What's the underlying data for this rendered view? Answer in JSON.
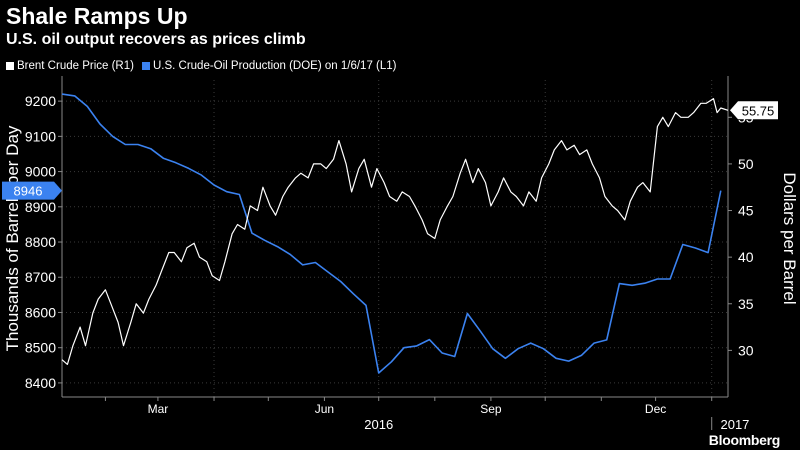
{
  "header": {
    "title": "Shale Ramps Up",
    "subtitle": "U.S. oil output recovers as prices climb"
  },
  "legend": [
    {
      "name": "Brent Crude Price (R1)",
      "color": "#ffffff"
    },
    {
      "name": "U.S. Crude-Oil Production (DOE) on 1/6/17 (L1)",
      "color": "#3b82f0"
    }
  ],
  "brand": "Bloomberg",
  "chart_data": {
    "type": "line",
    "title": "Shale Ramps Up",
    "subtitle": "U.S. oil output recovers as prices climb",
    "ylabel_left": "Thousands of Barrels per Day",
    "ylabel_right": "Dollars per Barrel",
    "left_axis": {
      "range": [
        8360,
        9260
      ],
      "ticks": [
        8400,
        8500,
        8600,
        8700,
        8800,
        8900,
        9000,
        9100,
        9200
      ]
    },
    "right_axis": {
      "range": [
        25,
        59
      ],
      "ticks": [
        30,
        35,
        40,
        45,
        50,
        55
      ]
    },
    "x_axis": {
      "range": [
        "2016-01-08",
        "2017-01-10"
      ],
      "month_labels": [
        {
          "date": "2016-03-01",
          "label": "Mar"
        },
        {
          "date": "2016-06-01",
          "label": "Jun"
        },
        {
          "date": "2016-09-01",
          "label": "Sep"
        },
        {
          "date": "2016-12-01",
          "label": "Dec"
        }
      ],
      "year_labels": [
        {
          "date": "2016-07-01",
          "label": "2016"
        },
        {
          "date": "2017-01-05",
          "label": "2017"
        }
      ],
      "gridlines": [
        "2016-04-01",
        "2016-07-01",
        "2016-10-01",
        "2017-01-01"
      ]
    },
    "grid": true,
    "legend_position": "top-left",
    "last_value_labels": {
      "production": "8946",
      "brent": "55.75"
    },
    "series": [
      {
        "name": "U.S. Crude-Oil Production (DOE) on 1/6/17 (L1)",
        "axis": "left",
        "color": "#3b82f0",
        "points": [
          [
            "2016-01-08",
            9220
          ],
          [
            "2016-01-15",
            9215
          ],
          [
            "2016-01-22",
            9185
          ],
          [
            "2016-01-29",
            9135
          ],
          [
            "2016-02-05",
            9100
          ],
          [
            "2016-02-12",
            9077
          ],
          [
            "2016-02-19",
            9077
          ],
          [
            "2016-02-26",
            9065
          ],
          [
            "2016-03-04",
            9038
          ],
          [
            "2016-03-11",
            9025
          ],
          [
            "2016-03-18",
            9009
          ],
          [
            "2016-03-25",
            8990
          ],
          [
            "2016-04-01",
            8962
          ],
          [
            "2016-04-08",
            8943
          ],
          [
            "2016-04-15",
            8935
          ],
          [
            "2016-04-22",
            8825
          ],
          [
            "2016-04-29",
            8805
          ],
          [
            "2016-05-06",
            8787
          ],
          [
            "2016-05-13",
            8765
          ],
          [
            "2016-05-20",
            8735
          ],
          [
            "2016-05-27",
            8742
          ],
          [
            "2016-06-03",
            8715
          ],
          [
            "2016-06-10",
            8688
          ],
          [
            "2016-06-17",
            8653
          ],
          [
            "2016-06-24",
            8620
          ],
          [
            "2016-07-01",
            8428
          ],
          [
            "2016-07-08",
            8460
          ],
          [
            "2016-07-15",
            8500
          ],
          [
            "2016-07-22",
            8505
          ],
          [
            "2016-07-29",
            8523
          ],
          [
            "2016-08-05",
            8485
          ],
          [
            "2016-08-12",
            8475
          ],
          [
            "2016-08-19",
            8597
          ],
          [
            "2016-08-26",
            8548
          ],
          [
            "2016-09-02",
            8497
          ],
          [
            "2016-09-09",
            8470
          ],
          [
            "2016-09-16",
            8497
          ],
          [
            "2016-09-23",
            8513
          ],
          [
            "2016-09-30",
            8497
          ],
          [
            "2016-10-07",
            8470
          ],
          [
            "2016-10-14",
            8462
          ],
          [
            "2016-10-21",
            8478
          ],
          [
            "2016-10-28",
            8513
          ],
          [
            "2016-11-04",
            8522
          ],
          [
            "2016-11-11",
            8682
          ],
          [
            "2016-11-18",
            8677
          ],
          [
            "2016-11-25",
            8683
          ],
          [
            "2016-12-02",
            8695
          ],
          [
            "2016-12-09",
            8695
          ],
          [
            "2016-12-16",
            8793
          ],
          [
            "2016-12-23",
            8783
          ],
          [
            "2016-12-30",
            8770
          ],
          [
            "2017-01-06",
            8946
          ]
        ]
      },
      {
        "name": "Brent Crude Price (R1)",
        "axis": "right",
        "color": "#ffffff",
        "points": [
          [
            "2016-01-08",
            29.0
          ],
          [
            "2016-01-11",
            28.5
          ],
          [
            "2016-01-14",
            30.5
          ],
          [
            "2016-01-18",
            32.5
          ],
          [
            "2016-01-21",
            30.5
          ],
          [
            "2016-01-25",
            34.0
          ],
          [
            "2016-01-28",
            35.5
          ],
          [
            "2016-02-01",
            36.5
          ],
          [
            "2016-02-04",
            35.0
          ],
          [
            "2016-02-08",
            33.0
          ],
          [
            "2016-02-11",
            30.5
          ],
          [
            "2016-02-15",
            33.0
          ],
          [
            "2016-02-18",
            35.0
          ],
          [
            "2016-02-22",
            34.0
          ],
          [
            "2016-02-25",
            35.5
          ],
          [
            "2016-02-29",
            37.0
          ],
          [
            "2016-03-03",
            38.5
          ],
          [
            "2016-03-07",
            40.5
          ],
          [
            "2016-03-10",
            40.5
          ],
          [
            "2016-03-14",
            39.5
          ],
          [
            "2016-03-17",
            41.0
          ],
          [
            "2016-03-21",
            41.5
          ],
          [
            "2016-03-24",
            40.0
          ],
          [
            "2016-03-28",
            39.5
          ],
          [
            "2016-03-31",
            38.0
          ],
          [
            "2016-04-04",
            37.5
          ],
          [
            "2016-04-07",
            39.5
          ],
          [
            "2016-04-11",
            42.5
          ],
          [
            "2016-04-14",
            43.5
          ],
          [
            "2016-04-18",
            43.0
          ],
          [
            "2016-04-21",
            45.5
          ],
          [
            "2016-04-25",
            45.0
          ],
          [
            "2016-04-28",
            47.5
          ],
          [
            "2016-05-02",
            45.5
          ],
          [
            "2016-05-05",
            44.5
          ],
          [
            "2016-05-09",
            46.5
          ],
          [
            "2016-05-12",
            47.5
          ],
          [
            "2016-05-16",
            48.5
          ],
          [
            "2016-05-19",
            49.0
          ],
          [
            "2016-05-23",
            48.5
          ],
          [
            "2016-05-26",
            50.0
          ],
          [
            "2016-05-30",
            50.0
          ],
          [
            "2016-06-02",
            49.5
          ],
          [
            "2016-06-06",
            50.5
          ],
          [
            "2016-06-09",
            52.5
          ],
          [
            "2016-06-13",
            50.0
          ],
          [
            "2016-06-16",
            47.0
          ],
          [
            "2016-06-20",
            49.5
          ],
          [
            "2016-06-23",
            50.5
          ],
          [
            "2016-06-27",
            47.5
          ],
          [
            "2016-06-30",
            49.5
          ],
          [
            "2016-07-04",
            48.0
          ],
          [
            "2016-07-07",
            46.5
          ],
          [
            "2016-07-11",
            46.0
          ],
          [
            "2016-07-14",
            47.0
          ],
          [
            "2016-07-18",
            46.5
          ],
          [
            "2016-07-21",
            45.5
          ],
          [
            "2016-07-25",
            44.0
          ],
          [
            "2016-07-28",
            42.5
          ],
          [
            "2016-08-01",
            42.0
          ],
          [
            "2016-08-04",
            44.0
          ],
          [
            "2016-08-08",
            45.5
          ],
          [
            "2016-08-11",
            46.5
          ],
          [
            "2016-08-15",
            49.0
          ],
          [
            "2016-08-18",
            50.5
          ],
          [
            "2016-08-22",
            48.0
          ],
          [
            "2016-08-25",
            49.5
          ],
          [
            "2016-08-29",
            48.0
          ],
          [
            "2016-09-01",
            45.5
          ],
          [
            "2016-09-05",
            47.0
          ],
          [
            "2016-09-08",
            48.5
          ],
          [
            "2016-09-12",
            47.0
          ],
          [
            "2016-09-15",
            46.5
          ],
          [
            "2016-09-19",
            45.5
          ],
          [
            "2016-09-22",
            47.0
          ],
          [
            "2016-09-26",
            46.0
          ],
          [
            "2016-09-29",
            48.5
          ],
          [
            "2016-10-03",
            50.0
          ],
          [
            "2016-10-06",
            51.5
          ],
          [
            "2016-10-10",
            52.5
          ],
          [
            "2016-10-13",
            51.5
          ],
          [
            "2016-10-17",
            52.0
          ],
          [
            "2016-10-20",
            51.0
          ],
          [
            "2016-10-24",
            51.5
          ],
          [
            "2016-10-27",
            50.0
          ],
          [
            "2016-10-31",
            48.5
          ],
          [
            "2016-11-03",
            46.5
          ],
          [
            "2016-11-07",
            45.5
          ],
          [
            "2016-11-10",
            45.0
          ],
          [
            "2016-11-14",
            44.0
          ],
          [
            "2016-11-17",
            46.0
          ],
          [
            "2016-11-21",
            47.5
          ],
          [
            "2016-11-24",
            48.0
          ],
          [
            "2016-11-28",
            47.0
          ],
          [
            "2016-11-30",
            50.5
          ],
          [
            "2016-12-02",
            54.0
          ],
          [
            "2016-12-05",
            55.0
          ],
          [
            "2016-12-08",
            54.0
          ],
          [
            "2016-12-12",
            55.5
          ],
          [
            "2016-12-15",
            55.0
          ],
          [
            "2016-12-19",
            55.0
          ],
          [
            "2016-12-22",
            55.5
          ],
          [
            "2016-12-26",
            56.5
          ],
          [
            "2016-12-29",
            56.5
          ],
          [
            "2017-01-02",
            57.0
          ],
          [
            "2017-01-04",
            55.5
          ],
          [
            "2017-01-06",
            56.0
          ],
          [
            "2017-01-10",
            55.75
          ]
        ]
      }
    ]
  }
}
